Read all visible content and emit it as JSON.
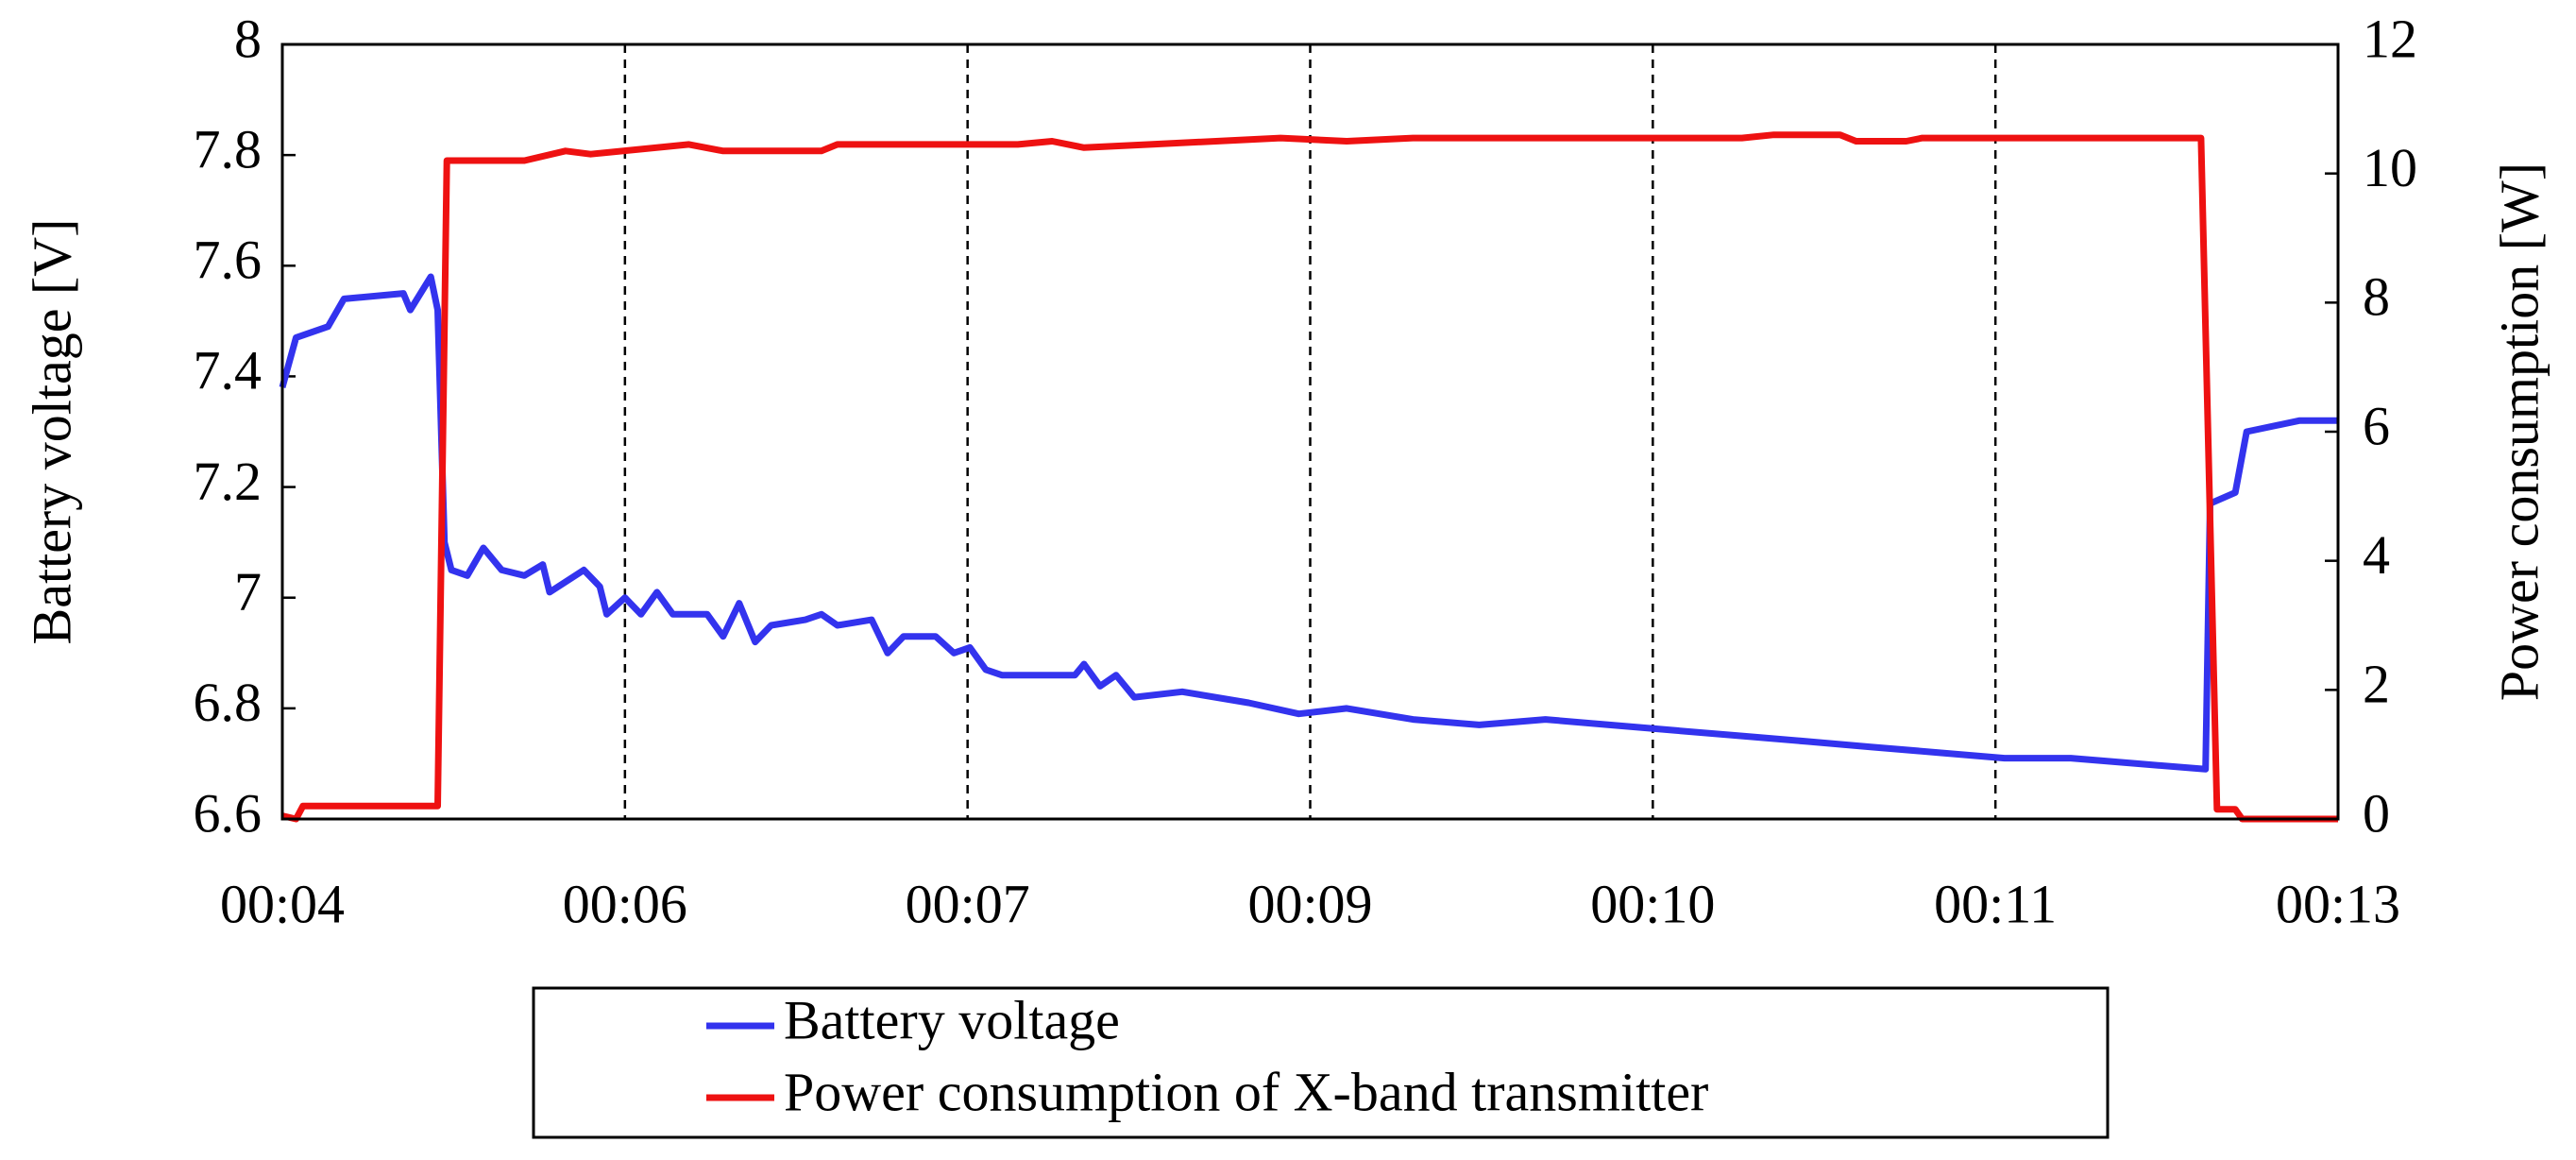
{
  "chart_data": {
    "type": "line",
    "y_label": "Battery voltage [V]",
    "y2_label": "Power consumption [W]",
    "xlim": [
      4,
      13
    ],
    "xticks": [
      {
        "value": 4,
        "label": "00:04"
      },
      {
        "value": 5.5,
        "label": "00:06"
      },
      {
        "value": 7,
        "label": "00:07"
      },
      {
        "value": 8.5,
        "label": "00:09"
      },
      {
        "value": 10,
        "label": "00:10"
      },
      {
        "value": 11.5,
        "label": "00:11"
      },
      {
        "value": 13,
        "label": "00:13"
      }
    ],
    "ylim": [
      6.6,
      8
    ],
    "yticks": [
      6.6,
      6.8,
      7,
      7.2,
      7.4,
      7.6,
      7.8,
      8
    ],
    "y2lim": [
      0,
      12
    ],
    "y2ticks": [
      0,
      2,
      4,
      6,
      8,
      10,
      12
    ],
    "grid": true,
    "legend": "bottom",
    "series": [
      {
        "name": "Battery voltage",
        "color": "#3333ee",
        "x": [
          4.0,
          4.06,
          4.2,
          4.27,
          4.53,
          4.56,
          4.65,
          4.68,
          4.71,
          4.74,
          4.81,
          4.88,
          4.96,
          5.06,
          5.14,
          5.17,
          5.32,
          5.39,
          5.42,
          5.5,
          5.57,
          5.64,
          5.71,
          5.86,
          5.93,
          6.0,
          6.07,
          6.14,
          6.29,
          6.36,
          6.43,
          6.58,
          6.65,
          6.72,
          6.86,
          6.94,
          7.01,
          7.08,
          7.15,
          7.47,
          7.51,
          7.58,
          7.65,
          7.73,
          7.94,
          8.23,
          8.45,
          8.66,
          8.95,
          9.24,
          9.53,
          9.81,
          10.1,
          10.39,
          10.68,
          10.96,
          11.25,
          11.54,
          11.83,
          12.12,
          12.42,
          12.44,
          12.55,
          12.6,
          12.83,
          13.0
        ],
        "values": [
          7.38,
          7.47,
          7.49,
          7.54,
          7.55,
          7.52,
          7.58,
          7.52,
          7.1,
          7.05,
          7.04,
          7.09,
          7.05,
          7.04,
          7.06,
          7.01,
          7.05,
          7.02,
          6.97,
          7.0,
          6.97,
          7.01,
          6.97,
          6.97,
          6.93,
          6.99,
          6.92,
          6.95,
          6.96,
          6.97,
          6.95,
          6.96,
          6.9,
          6.93,
          6.93,
          6.9,
          6.91,
          6.87,
          6.86,
          6.86,
          6.88,
          6.84,
          6.86,
          6.82,
          6.83,
          6.81,
          6.79,
          6.8,
          6.78,
          6.77,
          6.78,
          6.77,
          6.76,
          6.75,
          6.74,
          6.73,
          6.72,
          6.71,
          6.71,
          6.7,
          6.69,
          7.17,
          7.19,
          7.3,
          7.32,
          7.32
        ]
      },
      {
        "name": "Power consumption of X-band transmitter",
        "color": "#ee1111",
        "axis": "y2",
        "x": [
          4.0,
          4.06,
          4.09,
          4.68,
          4.72,
          5.06,
          5.24,
          5.35,
          5.78,
          5.93,
          6.36,
          6.43,
          7.22,
          7.37,
          7.51,
          7.8,
          8.37,
          8.66,
          8.95,
          10.39,
          10.53,
          10.82,
          10.89,
          11.11,
          11.18,
          12.4,
          12.47,
          12.55,
          12.58,
          13.0
        ],
        "values": [
          0.05,
          0,
          0.2,
          0.2,
          10.2,
          10.2,
          10.35,
          10.3,
          10.45,
          10.35,
          10.35,
          10.45,
          10.45,
          10.5,
          10.4,
          10.45,
          10.55,
          10.5,
          10.55,
          10.55,
          10.6,
          10.6,
          10.5,
          10.5,
          10.55,
          10.55,
          0.15,
          0.15,
          0,
          0
        ]
      }
    ]
  }
}
